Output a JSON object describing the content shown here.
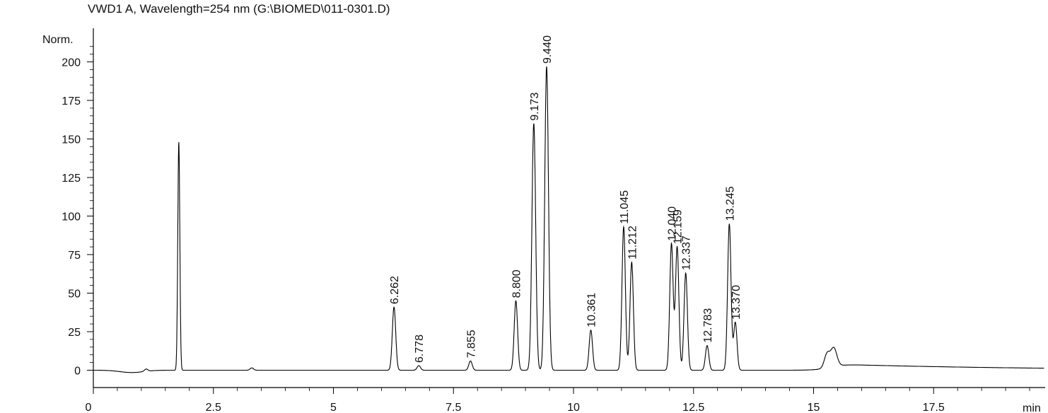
{
  "chart_data": {
    "type": "line",
    "title": "VWD1 A, Wavelength=254 nm (G:\\BIOMED\\011-0301.D)",
    "xlabel": "min",
    "ylabel": "Norm.",
    "xlim": [
      0,
      19.8
    ],
    "ylim": [
      -12,
      213
    ],
    "x_ticks": [
      0,
      2.5,
      5,
      7.5,
      10,
      12.5,
      15,
      17.5
    ],
    "x_tick_labels": [
      "0",
      "2.5",
      "5",
      "7.5",
      "10",
      "12.5",
      "15",
      "17.5"
    ],
    "y_ticks": [
      0,
      25,
      50,
      75,
      100,
      125,
      150,
      175,
      200
    ],
    "y_tick_labels": [
      "0",
      "25",
      "50",
      "75",
      "100",
      "125",
      "150",
      "175",
      "200"
    ],
    "grid": false,
    "peaks": [
      {
        "x": 1.78,
        "height": 148,
        "label": ""
      },
      {
        "x": 6.262,
        "height": 41,
        "label": "6.262"
      },
      {
        "x": 6.778,
        "height": 3,
        "label": "6.778"
      },
      {
        "x": 7.855,
        "height": 6,
        "label": "7.855"
      },
      {
        "x": 8.8,
        "height": 45,
        "label": "8.800"
      },
      {
        "x": 9.173,
        "height": 160,
        "label": "9.173"
      },
      {
        "x": 9.44,
        "height": 197,
        "label": "9.440"
      },
      {
        "x": 10.361,
        "height": 26,
        "label": "10.361"
      },
      {
        "x": 11.045,
        "height": 93,
        "label": "11.045"
      },
      {
        "x": 11.212,
        "height": 70,
        "label": "11.212"
      },
      {
        "x": 12.04,
        "height": 82,
        "label": "12.040"
      },
      {
        "x": 12.159,
        "height": 80,
        "label": "12.159"
      },
      {
        "x": 12.337,
        "height": 63,
        "label": "12.337"
      },
      {
        "x": 12.783,
        "height": 16,
        "label": "12.783"
      },
      {
        "x": 13.245,
        "height": 95,
        "label": "13.245"
      },
      {
        "x": 13.37,
        "height": 31,
        "label": "13.370"
      }
    ]
  }
}
